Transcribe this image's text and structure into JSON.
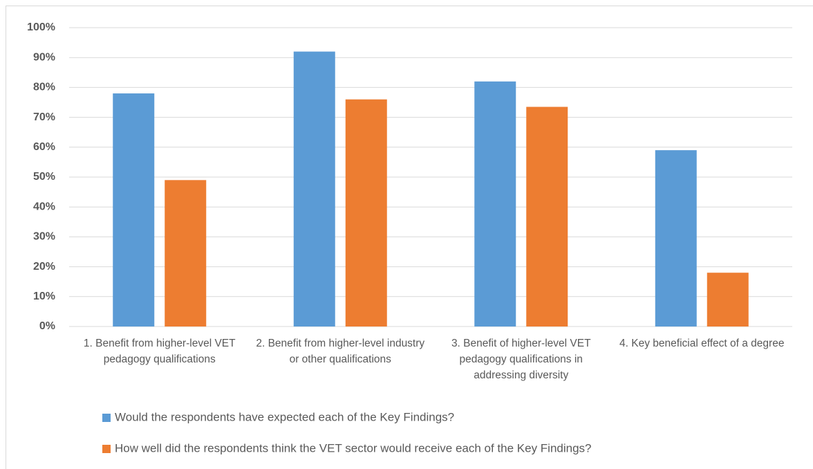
{
  "chart_data": {
    "type": "bar",
    "categories": [
      "1. Benefit from higher-level VET pedagogy qualifications",
      "2. Benefit from higher-level industry or other qualifications",
      "3. Benefit of higher-level VET pedagogy qualifications in addressing diversity",
      "4. Key beneficial effect of a degree"
    ],
    "series": [
      {
        "name": "Would the respondents have expected each of the Key Findings?",
        "color": "#5b9bd5",
        "values": [
          78,
          92,
          82,
          59
        ]
      },
      {
        "name": "How well did the respondents think the VET sector would receive each of the Key Findings?",
        "color": "#ed7d31",
        "values": [
          49,
          76,
          73.5,
          18
        ]
      }
    ],
    "ylim": [
      0,
      100
    ],
    "yticks": [
      {
        "value": 0,
        "label": "0%"
      },
      {
        "value": 10,
        "label": "10%"
      },
      {
        "value": 20,
        "label": "20%"
      },
      {
        "value": 30,
        "label": "30%"
      },
      {
        "value": 40,
        "label": "40%"
      },
      {
        "value": 50,
        "label": "50%"
      },
      {
        "value": 60,
        "label": "60%"
      },
      {
        "value": 70,
        "label": "70%"
      },
      {
        "value": 80,
        "label": "80%"
      },
      {
        "value": 90,
        "label": "90%"
      },
      {
        "value": 100,
        "label": "100%"
      }
    ],
    "grid": true,
    "legend": "bottom"
  }
}
